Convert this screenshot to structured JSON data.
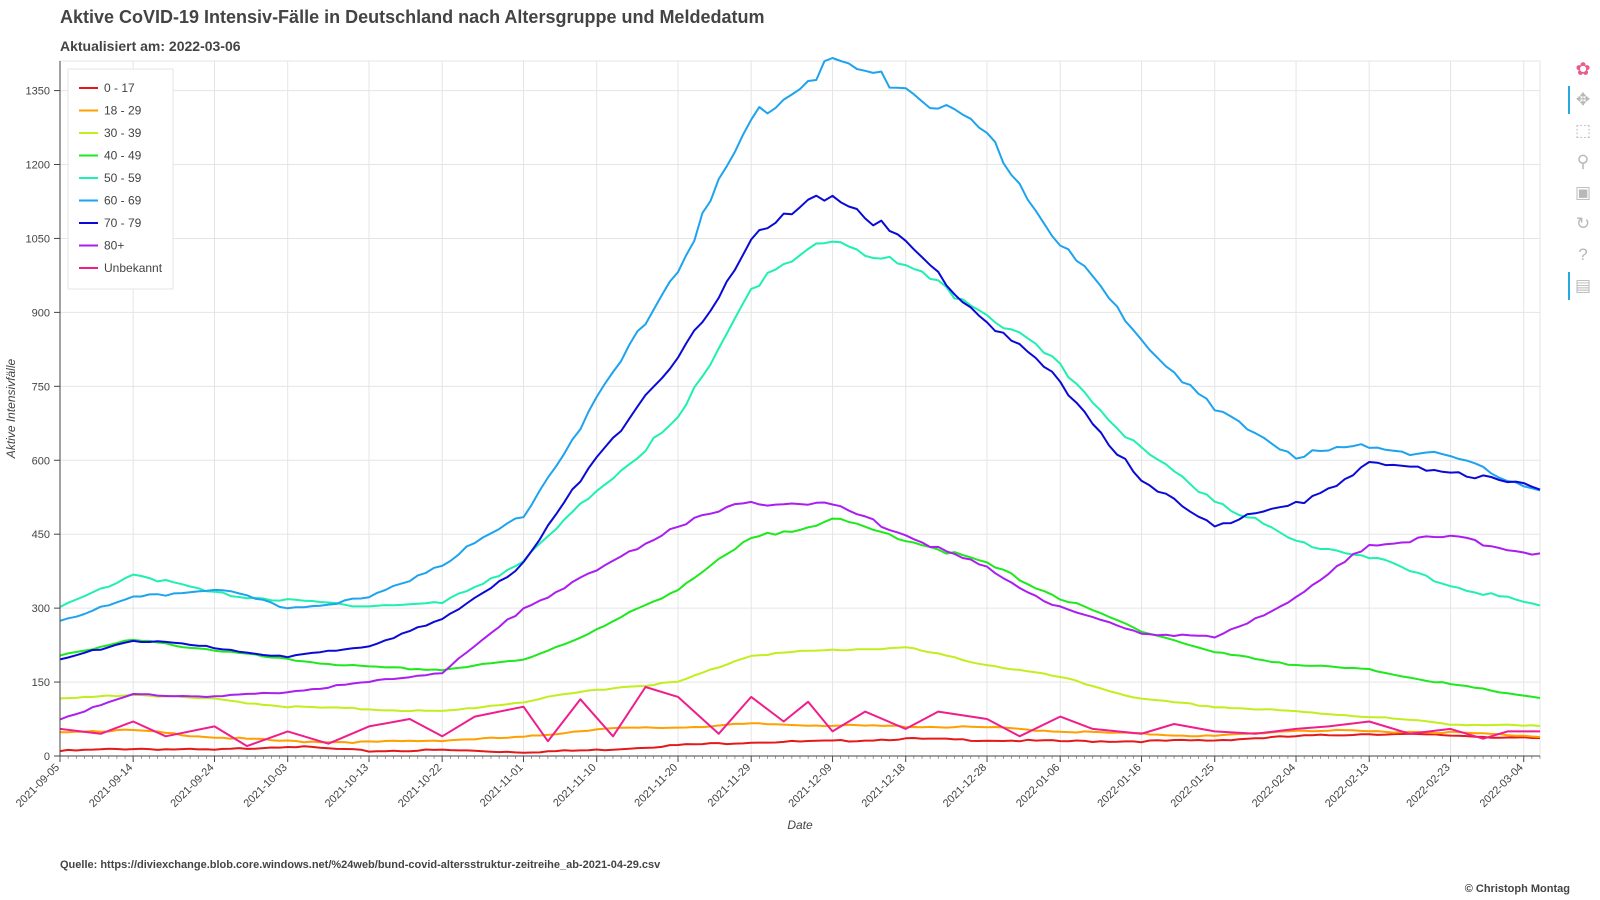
{
  "header": {
    "title": "Aktive CoVID-19 Intensiv-Fälle in Deutschland nach Altersgruppe und Meldedatum",
    "subtitle": "Aktualisiert am: 2022-03-06"
  },
  "footer": {
    "source": "Quelle: https://diviexchange.blob.core.windows.net/%24web/bund-covid-altersstruktur-zeitreihe_ab-2021-04-29.csv",
    "credit": "© Christoph Montag"
  },
  "toolbar": {
    "tools": [
      {
        "name": "bokeh-logo-icon",
        "glyph": "✿",
        "active": false,
        "logo": true
      },
      {
        "name": "pan-icon",
        "glyph": "✥",
        "active": true
      },
      {
        "name": "box-zoom-icon",
        "glyph": "⬚",
        "active": false
      },
      {
        "name": "wheel-zoom-icon",
        "glyph": "⚲",
        "active": false
      },
      {
        "name": "save-icon",
        "glyph": "▣",
        "active": false
      },
      {
        "name": "reset-icon",
        "glyph": "↻",
        "active": false
      },
      {
        "name": "help-icon",
        "glyph": "?",
        "active": false
      },
      {
        "name": "hover-icon",
        "glyph": "▤",
        "active": true
      }
    ]
  },
  "chart_data": {
    "type": "line",
    "xlabel": "Date",
    "ylabel": "Aktive Intensivfälle",
    "x_range": [
      "2021-09-05",
      "2022-03-06"
    ],
    "ylim": [
      0,
      1410
    ],
    "yticks": [
      0,
      150,
      300,
      450,
      600,
      750,
      900,
      1050,
      1200,
      1350
    ],
    "xticks": [
      "2021-09-05",
      "2021-09-14",
      "2021-09-24",
      "2021-10-03",
      "2021-10-13",
      "2021-10-22",
      "2021-11-01",
      "2021-11-10",
      "2021-11-20",
      "2021-11-29",
      "2021-12-09",
      "2021-12-18",
      "2021-12-28",
      "2022-01-06",
      "2022-01-16",
      "2022-01-25",
      "2022-02-04",
      "2022-02-13",
      "2022-02-23",
      "2022-03-04"
    ],
    "grid": true,
    "legend_position": "top-left",
    "series": [
      {
        "name": "0 - 17",
        "color": "#e31a1c",
        "points": [
          [
            "2021-09-05",
            10
          ],
          [
            "2021-09-14",
            15
          ],
          [
            "2021-09-24",
            12
          ],
          [
            "2021-10-03",
            20
          ],
          [
            "2021-10-13",
            10
          ],
          [
            "2021-10-22",
            12
          ],
          [
            "2021-11-01",
            8
          ],
          [
            "2021-11-10",
            12
          ],
          [
            "2021-11-20",
            22
          ],
          [
            "2021-11-29",
            28
          ],
          [
            "2021-12-09",
            30
          ],
          [
            "2021-12-18",
            35
          ],
          [
            "2021-12-28",
            32
          ],
          [
            "2022-01-06",
            30
          ],
          [
            "2022-01-16",
            30
          ],
          [
            "2022-01-25",
            32
          ],
          [
            "2022-02-04",
            40
          ],
          [
            "2022-02-13",
            45
          ],
          [
            "2022-02-23",
            42
          ],
          [
            "2022-03-06",
            35
          ]
        ]
      },
      {
        "name": "18 - 29",
        "color": "#ff9f00",
        "points": [
          [
            "2021-09-05",
            50
          ],
          [
            "2021-09-14",
            52
          ],
          [
            "2021-09-24",
            38
          ],
          [
            "2021-10-03",
            30
          ],
          [
            "2021-10-13",
            28
          ],
          [
            "2021-10-22",
            32
          ],
          [
            "2021-11-01",
            38
          ],
          [
            "2021-11-10",
            55
          ],
          [
            "2021-11-20",
            58
          ],
          [
            "2021-11-29",
            65
          ],
          [
            "2021-12-09",
            62
          ],
          [
            "2021-12-18",
            60
          ],
          [
            "2021-12-28",
            58
          ],
          [
            "2022-01-06",
            50
          ],
          [
            "2022-01-16",
            45
          ],
          [
            "2022-01-25",
            40
          ],
          [
            "2022-02-04",
            52
          ],
          [
            "2022-02-13",
            50
          ],
          [
            "2022-02-23",
            48
          ],
          [
            "2022-03-06",
            40
          ]
        ]
      },
      {
        "name": "30 - 39",
        "color": "#c2ee1e",
        "points": [
          [
            "2021-09-05",
            115
          ],
          [
            "2021-09-14",
            125
          ],
          [
            "2021-09-24",
            115
          ],
          [
            "2021-10-03",
            100
          ],
          [
            "2021-10-13",
            95
          ],
          [
            "2021-10-22",
            90
          ],
          [
            "2021-11-01",
            110
          ],
          [
            "2021-11-10",
            135
          ],
          [
            "2021-11-20",
            150
          ],
          [
            "2021-11-29",
            205
          ],
          [
            "2021-12-09",
            215
          ],
          [
            "2021-12-18",
            220
          ],
          [
            "2021-12-28",
            185
          ],
          [
            "2022-01-06",
            160
          ],
          [
            "2022-01-16",
            115
          ],
          [
            "2022-01-25",
            100
          ],
          [
            "2022-02-04",
            90
          ],
          [
            "2022-02-13",
            80
          ],
          [
            "2022-02-23",
            65
          ],
          [
            "2022-03-06",
            60
          ]
        ]
      },
      {
        "name": "40 - 49",
        "color": "#1ee81e",
        "points": [
          [
            "2021-09-05",
            205
          ],
          [
            "2021-09-14",
            235
          ],
          [
            "2021-09-24",
            215
          ],
          [
            "2021-10-03",
            195
          ],
          [
            "2021-10-13",
            180
          ],
          [
            "2021-10-22",
            175
          ],
          [
            "2021-11-01",
            195
          ],
          [
            "2021-11-10",
            255
          ],
          [
            "2021-11-20",
            340
          ],
          [
            "2021-11-29",
            440
          ],
          [
            "2021-12-09",
            480
          ],
          [
            "2021-12-18",
            440
          ],
          [
            "2021-12-28",
            390
          ],
          [
            "2022-01-06",
            320
          ],
          [
            "2022-01-16",
            255
          ],
          [
            "2022-01-25",
            210
          ],
          [
            "2022-02-04",
            185
          ],
          [
            "2022-02-13",
            175
          ],
          [
            "2022-02-23",
            145
          ],
          [
            "2022-03-06",
            118
          ]
        ]
      },
      {
        "name": "50 - 59",
        "color": "#1ef0b0",
        "points": [
          [
            "2021-09-05",
            300
          ],
          [
            "2021-09-14",
            370
          ],
          [
            "2021-09-24",
            330
          ],
          [
            "2021-10-03",
            315
          ],
          [
            "2021-10-13",
            305
          ],
          [
            "2021-10-22",
            310
          ],
          [
            "2021-11-01",
            395
          ],
          [
            "2021-11-10",
            540
          ],
          [
            "2021-11-20",
            680
          ],
          [
            "2021-11-29",
            950
          ],
          [
            "2021-12-09",
            1050
          ],
          [
            "2021-12-18",
            990
          ],
          [
            "2021-12-28",
            900
          ],
          [
            "2022-01-06",
            790
          ],
          [
            "2022-01-16",
            620
          ],
          [
            "2022-01-25",
            520
          ],
          [
            "2022-02-04",
            435
          ],
          [
            "2022-02-13",
            405
          ],
          [
            "2022-02-23",
            345
          ],
          [
            "2022-03-06",
            305
          ]
        ]
      },
      {
        "name": "60 - 69",
        "color": "#1ea3ef",
        "points": [
          [
            "2021-09-05",
            275
          ],
          [
            "2021-09-14",
            320
          ],
          [
            "2021-09-24",
            340
          ],
          [
            "2021-10-03",
            300
          ],
          [
            "2021-10-13",
            320
          ],
          [
            "2021-10-22",
            390
          ],
          [
            "2021-11-01",
            490
          ],
          [
            "2021-11-10",
            720
          ],
          [
            "2021-11-20",
            990
          ],
          [
            "2021-11-29",
            1290
          ],
          [
            "2021-12-09",
            1410
          ],
          [
            "2021-12-18",
            1355
          ],
          [
            "2021-12-28",
            1260
          ],
          [
            "2022-01-06",
            1040
          ],
          [
            "2022-01-16",
            850
          ],
          [
            "2022-01-25",
            700
          ],
          [
            "2022-02-04",
            610
          ],
          [
            "2022-02-13",
            630
          ],
          [
            "2022-02-23",
            605
          ],
          [
            "2022-03-06",
            540
          ]
        ]
      },
      {
        "name": "70 - 79",
        "color": "#0a0ad8",
        "points": [
          [
            "2021-09-05",
            195
          ],
          [
            "2021-09-14",
            235
          ],
          [
            "2021-09-24",
            220
          ],
          [
            "2021-10-03",
            200
          ],
          [
            "2021-10-13",
            225
          ],
          [
            "2021-10-22",
            275
          ],
          [
            "2021-11-01",
            390
          ],
          [
            "2021-11-10",
            610
          ],
          [
            "2021-11-20",
            800
          ],
          [
            "2021-11-29",
            1050
          ],
          [
            "2021-12-09",
            1145
          ],
          [
            "2021-12-18",
            1040
          ],
          [
            "2021-12-28",
            880
          ],
          [
            "2022-01-06",
            760
          ],
          [
            "2022-01-16",
            555
          ],
          [
            "2022-01-25",
            470
          ],
          [
            "2022-02-04",
            510
          ],
          [
            "2022-02-13",
            590
          ],
          [
            "2022-02-23",
            580
          ],
          [
            "2022-03-06",
            540
          ]
        ]
      },
      {
        "name": "80+",
        "color": "#aa1ef0",
        "points": [
          [
            "2021-09-05",
            75
          ],
          [
            "2021-09-14",
            125
          ],
          [
            "2021-09-24",
            120
          ],
          [
            "2021-10-03",
            130
          ],
          [
            "2021-10-13",
            150
          ],
          [
            "2021-10-22",
            170
          ],
          [
            "2021-11-01",
            300
          ],
          [
            "2021-11-10",
            375
          ],
          [
            "2021-11-20",
            470
          ],
          [
            "2021-11-29",
            515
          ],
          [
            "2021-12-09",
            510
          ],
          [
            "2021-12-18",
            450
          ],
          [
            "2021-12-28",
            380
          ],
          [
            "2022-01-06",
            300
          ],
          [
            "2022-01-16",
            250
          ],
          [
            "2022-01-25",
            240
          ],
          [
            "2022-02-04",
            320
          ],
          [
            "2022-02-13",
            430
          ],
          [
            "2022-02-23",
            445
          ],
          [
            "2022-03-06",
            408
          ]
        ]
      },
      {
        "name": "Unbekannt",
        "color": "#f01e8c",
        "points": [
          [
            "2021-09-05",
            55
          ],
          [
            "2021-09-10",
            45
          ],
          [
            "2021-09-14",
            70
          ],
          [
            "2021-09-18",
            40
          ],
          [
            "2021-09-24",
            60
          ],
          [
            "2021-09-28",
            20
          ],
          [
            "2021-10-03",
            50
          ],
          [
            "2021-10-08",
            25
          ],
          [
            "2021-10-13",
            60
          ],
          [
            "2021-10-18",
            75
          ],
          [
            "2021-10-22",
            40
          ],
          [
            "2021-10-26",
            80
          ],
          [
            "2021-11-01",
            100
          ],
          [
            "2021-11-04",
            30
          ],
          [
            "2021-11-08",
            115
          ],
          [
            "2021-11-12",
            40
          ],
          [
            "2021-11-16",
            140
          ],
          [
            "2021-11-20",
            120
          ],
          [
            "2021-11-25",
            45
          ],
          [
            "2021-11-29",
            120
          ],
          [
            "2021-12-03",
            70
          ],
          [
            "2021-12-06",
            110
          ],
          [
            "2021-12-09",
            50
          ],
          [
            "2021-12-13",
            90
          ],
          [
            "2021-12-18",
            55
          ],
          [
            "2021-12-22",
            90
          ],
          [
            "2021-12-28",
            75
          ],
          [
            "2022-01-01",
            40
          ],
          [
            "2022-01-06",
            80
          ],
          [
            "2022-01-10",
            55
          ],
          [
            "2022-01-16",
            45
          ],
          [
            "2022-01-20",
            65
          ],
          [
            "2022-01-25",
            50
          ],
          [
            "2022-01-30",
            45
          ],
          [
            "2022-02-04",
            55
          ],
          [
            "2022-02-08",
            60
          ],
          [
            "2022-02-13",
            70
          ],
          [
            "2022-02-18",
            45
          ],
          [
            "2022-02-23",
            55
          ],
          [
            "2022-02-27",
            35
          ],
          [
            "2022-03-02",
            50
          ],
          [
            "2022-03-06",
            50
          ]
        ]
      }
    ]
  }
}
